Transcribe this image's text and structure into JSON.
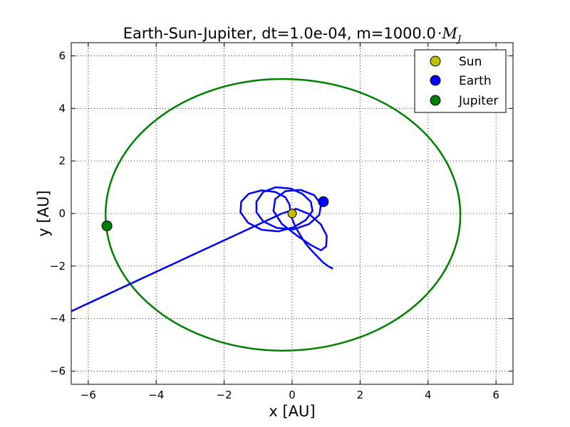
{
  "chart_data": {
    "type": "line",
    "title": "Earth-Sun-Jupiter, dt=1.0e-04, m=1000.0",
    "title_math": "·M",
    "title_math_sub": "J",
    "xlabel": "x [AU]",
    "ylabel": "y [AU]",
    "xlim": [
      -6.5,
      6.5
    ],
    "ylim": [
      -6.5,
      6.5
    ],
    "xticks": [
      -6,
      -4,
      -2,
      0,
      2,
      4,
      6
    ],
    "yticks": [
      -6,
      -4,
      -2,
      0,
      2,
      4,
      6
    ],
    "xtick_labels": [
      "−6",
      "−4",
      "−2",
      "0",
      "2",
      "4",
      "6"
    ],
    "ytick_labels": [
      "−6",
      "−4",
      "−2",
      "0",
      "2",
      "4",
      "6"
    ],
    "grid": true,
    "legend_position": "top-right",
    "series": [
      {
        "name": "Sun",
        "color": "#bfbf00",
        "trajectory": [
          [
            0.0,
            0.0
          ],
          [
            0.02,
            0.01
          ],
          [
            0.05,
            0.02
          ],
          [
            0.08,
            0.0
          ],
          [
            0.05,
            -0.03
          ],
          [
            0.0,
            0.0
          ]
        ],
        "marker": [
          0.0,
          0.0
        ]
      },
      {
        "name": "Earth",
        "color": "#0000ff",
        "trajectory": [
          [
            1.2,
            -2.1
          ],
          [
            1.05,
            -2.0
          ],
          [
            0.9,
            -1.85
          ],
          [
            0.75,
            -1.65
          ],
          [
            0.58,
            -1.42
          ],
          [
            0.4,
            -1.15
          ],
          [
            0.25,
            -0.85
          ],
          [
            0.1,
            -0.52
          ],
          [
            0.0,
            -0.2
          ],
          [
            -0.05,
            0.1
          ],
          [
            -0.08,
            0.35
          ],
          [
            -0.2,
            0.62
          ],
          [
            -0.5,
            0.82
          ],
          [
            -0.9,
            0.88
          ],
          [
            -1.28,
            0.75
          ],
          [
            -1.5,
            0.45
          ],
          [
            -1.52,
            0.05
          ],
          [
            -1.3,
            -0.35
          ],
          [
            -0.9,
            -0.62
          ],
          [
            -0.4,
            -0.68
          ],
          [
            0.05,
            -0.52
          ],
          [
            0.4,
            -0.25
          ],
          [
            0.6,
            0.1
          ],
          [
            0.55,
            0.45
          ],
          [
            0.3,
            0.75
          ],
          [
            -0.05,
            0.95
          ],
          [
            -0.48,
            1.0
          ],
          [
            -0.85,
            0.82
          ],
          [
            -1.05,
            0.45
          ],
          [
            -1.05,
            0.05
          ],
          [
            -0.85,
            -0.3
          ],
          [
            -0.45,
            -0.55
          ],
          [
            0.05,
            -0.6
          ],
          [
            0.5,
            -0.4
          ],
          [
            0.8,
            -0.05
          ],
          [
            0.85,
            0.35
          ],
          [
            0.65,
            0.7
          ],
          [
            0.25,
            0.9
          ],
          [
            -0.2,
            0.85
          ],
          [
            -0.5,
            0.55
          ],
          [
            -0.55,
            0.1
          ],
          [
            -0.3,
            -0.4
          ],
          [
            0.15,
            -0.85
          ],
          [
            0.55,
            -1.2
          ],
          [
            0.85,
            -1.4
          ],
          [
            1.0,
            -1.25
          ],
          [
            1.02,
            -0.85
          ],
          [
            0.85,
            -0.42
          ],
          [
            0.5,
            -0.02
          ],
          [
            0.12,
            0.18
          ],
          [
            -0.3,
            0.0
          ],
          [
            -1.5,
            -0.72
          ],
          [
            -3.0,
            -1.62
          ],
          [
            -4.5,
            -2.52
          ],
          [
            -6.0,
            -3.42
          ],
          [
            -6.5,
            -3.72
          ],
          [
            -6.9,
            -3.97
          ]
        ],
        "marker": [
          0.92,
          0.45
        ]
      },
      {
        "name": "Jupiter",
        "type": "ellipse",
        "center": [
          -0.27,
          -0.05
        ],
        "radius_x": 5.22,
        "radius_y": 5.17,
        "color": "#008000",
        "marker": [
          -5.45,
          -0.47
        ]
      }
    ]
  }
}
